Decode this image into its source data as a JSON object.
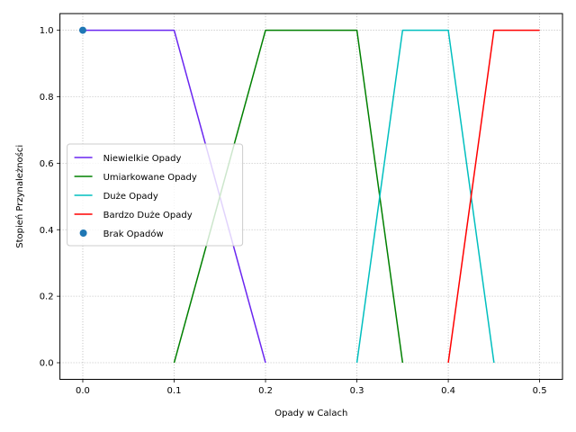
{
  "chart_data": {
    "type": "line",
    "title": "",
    "xlabel": "Opady w Calach",
    "ylabel": "Stopień Przynależności",
    "xlim": [
      -0.025,
      0.525
    ],
    "ylim": [
      -0.05,
      1.05
    ],
    "xticks": [
      "0.0",
      "0.1",
      "0.2",
      "0.3",
      "0.4",
      "0.5"
    ],
    "yticks": [
      "0.0",
      "0.2",
      "0.4",
      "0.6",
      "0.8",
      "1.0"
    ],
    "grid": true,
    "legend_position": "center-left",
    "series": [
      {
        "name": "Niewielkie Opady",
        "type": "line",
        "color": "#6a26f0",
        "x": [
          0.0,
          0.1,
          0.2
        ],
        "y": [
          1.0,
          1.0,
          0.0
        ]
      },
      {
        "name": "Umiarkowane Opady",
        "type": "line",
        "color": "#008000",
        "x": [
          0.1,
          0.2,
          0.3,
          0.35
        ],
        "y": [
          0.0,
          1.0,
          1.0,
          0.0
        ]
      },
      {
        "name": "Duże Opady",
        "type": "line",
        "color": "#00bfbf",
        "x": [
          0.3,
          0.35,
          0.4,
          0.45
        ],
        "y": [
          0.0,
          1.0,
          1.0,
          0.0
        ]
      },
      {
        "name": "Bardzo Duże Opady",
        "type": "line",
        "color": "#ff0000",
        "x": [
          0.4,
          0.45,
          0.5
        ],
        "y": [
          0.0,
          1.0,
          1.0
        ]
      },
      {
        "name": "Brak Opadów",
        "type": "scatter",
        "color": "#1f77b4",
        "x": [
          0.0
        ],
        "y": [
          1.0
        ]
      }
    ]
  }
}
